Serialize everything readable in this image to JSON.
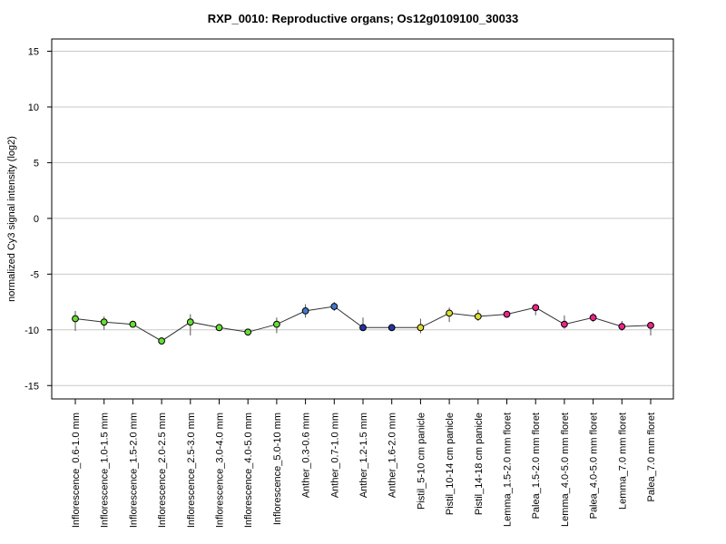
{
  "chart_data": {
    "type": "line",
    "title": "RXP_0010: Reproductive organs; Os12g0109100_30033",
    "xlabel": "",
    "ylabel": "normalized Cy3 signal intensity (log2)",
    "ylim": [
      -16.2,
      16.1
    ],
    "yticks": [
      -15,
      -10,
      -5,
      0,
      5,
      10,
      15
    ],
    "grid": "horizontal",
    "categories": [
      "Inflorescence_0.6-1.0 mm",
      "Inflorescence_1.0-1.5 mm",
      "Inflorescence_1.5-2.0 mm",
      "Inflorescence_2.0-2.5 mm",
      "Inflorescence_2.5-3.0 mm",
      "Inflorescence_3.0-4.0 mm",
      "Inflorescence_4.0-5.0 mm",
      "Inflorescence_5.0-10 mm",
      "Anther_0.3-0.6 mm",
      "Anther_0.7-1.0 mm",
      "Anther_1.2-1.5 mm",
      "Anther_1.6-2.0 mm",
      "Pistil_5-10 cm panicle",
      "Pistil_10-14 cm panicle",
      "Pistil_14-18 cm panicle",
      "Lemma_1.5-2.0 mm floret",
      "Palea_1.5-2.0 mm floret",
      "Lemma_4.0-5.0 mm floret",
      "Palea_4.0-5.0 mm floret",
      "Lemma_7.0 mm floret",
      "Palea_7.0 mm floret"
    ],
    "series": [
      {
        "values": [
          -9.0,
          -9.3,
          -9.5,
          -11.0,
          -9.3,
          -9.8,
          -10.2,
          -9.5,
          -8.3,
          -7.9,
          -9.8,
          -9.8,
          -9.8,
          -8.5,
          -8.8,
          -8.6,
          -8.0,
          -9.5,
          -8.9,
          -9.7,
          -9.6
        ],
        "err_low": [
          -10.1,
          -10.0,
          -9.6,
          -11.1,
          -10.5,
          -9.9,
          -10.5,
          -10.3,
          -8.9,
          -8.3,
          -10.1,
          -10.0,
          -10.3,
          -9.3,
          -9.2,
          -8.8,
          -8.7,
          -9.9,
          -9.3,
          -10.1,
          -10.5
        ],
        "err_high": [
          -8.3,
          -8.8,
          -9.3,
          -10.9,
          -8.6,
          -9.7,
          -9.9,
          -8.9,
          -7.7,
          -7.5,
          -8.9,
          -9.7,
          -9.0,
          -8.0,
          -8.2,
          -8.3,
          -7.7,
          -8.7,
          -8.5,
          -9.2,
          -9.5
        ]
      }
    ],
    "point_colors": [
      "#66dd33",
      "#66dd33",
      "#66dd33",
      "#66dd33",
      "#66dd33",
      "#66dd33",
      "#66dd33",
      "#66dd33",
      "#4477cc",
      "#4477cc",
      "#2233aa",
      "#2233aa",
      "#dddd33",
      "#dddd33",
      "#dddd33",
      "#ee2288",
      "#ee2288",
      "#ee2288",
      "#ee2288",
      "#ee2288",
      "#ee2288"
    ],
    "line_color": "#333333",
    "grid_color": "#c8c8c8"
  }
}
